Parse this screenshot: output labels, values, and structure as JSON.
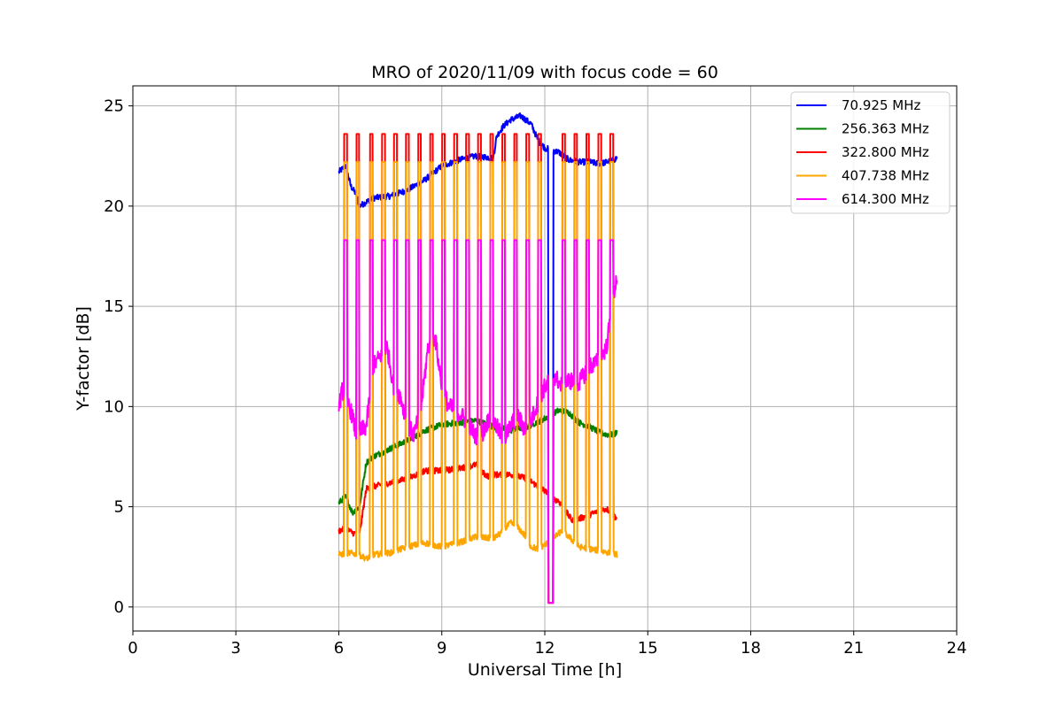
{
  "chart_data": {
    "type": "line",
    "title": "MRO of 2020/11/09 with focus code = 60",
    "xlabel": "Universal Time [h]",
    "ylabel": "Y-factor [dB]",
    "xlim": [
      0,
      24
    ],
    "ylim": [
      -1.2,
      26.0
    ],
    "xticks": [
      0,
      3,
      6,
      9,
      12,
      15,
      18,
      21,
      24
    ],
    "yticks": [
      0,
      5,
      10,
      15,
      20,
      25
    ],
    "grid": true,
    "legend_position": "top-right",
    "pulse_times": [
      6.2,
      6.55,
      6.95,
      7.3,
      7.65,
      8.0,
      8.35,
      8.7,
      9.05,
      9.4,
      9.75,
      10.1,
      10.45,
      10.8,
      11.15,
      11.5,
      11.85,
      12.55,
      12.9,
      13.25,
      13.6,
      13.95
    ],
    "pulse_levels": {
      "322.800 MHz": 23.6,
      "407.738 MHz": 22.2,
      "614.300 MHz": 18.3
    },
    "gap": {
      "x": [
        12.1,
        12.25
      ],
      "y": 0.2
    },
    "series": [
      {
        "name": " 70.925 MHz",
        "color": "#0000ff",
        "x": [
          6.0,
          6.2,
          6.35,
          6.5,
          6.6,
          6.8,
          7.0,
          7.5,
          8.0,
          8.5,
          9.0,
          9.5,
          10.0,
          10.5,
          10.6,
          10.8,
          11.0,
          11.3,
          11.6,
          11.8,
          12.0,
          12.2,
          12.4,
          12.7,
          13.0,
          13.3,
          13.6,
          13.8,
          14.0,
          14.1
        ],
        "y": [
          21.7,
          22.0,
          21.0,
          20.6,
          20.0,
          20.2,
          20.4,
          20.5,
          20.8,
          21.3,
          22.0,
          22.3,
          22.5,
          22.4,
          23.5,
          24.0,
          24.3,
          24.5,
          24.1,
          23.3,
          22.9,
          22.8,
          22.7,
          22.3,
          22.2,
          22.2,
          22.1,
          22.2,
          22.3,
          22.4
        ]
      },
      {
        "name": "256.363 MHz",
        "color": "#008000",
        "x": [
          6.0,
          6.2,
          6.4,
          6.6,
          6.8,
          7.0,
          7.5,
          8.0,
          8.5,
          9.0,
          9.5,
          10.0,
          10.5,
          11.0,
          11.5,
          12.0,
          12.2,
          12.4,
          12.7,
          13.0,
          13.3,
          13.6,
          13.8,
          14.0,
          14.1
        ],
        "y": [
          5.2,
          5.5,
          4.7,
          5.0,
          7.2,
          7.5,
          7.9,
          8.3,
          8.8,
          9.1,
          9.2,
          9.3,
          9.0,
          8.8,
          9.0,
          9.4,
          9.6,
          9.8,
          9.7,
          9.2,
          9.0,
          8.7,
          8.6,
          8.6,
          8.7
        ]
      },
      {
        "name": "322.800 MHz",
        "color": "#ff0000",
        "x": [
          6.0,
          6.2,
          6.4,
          6.6,
          6.8,
          7.0,
          7.5,
          8.0,
          8.5,
          9.0,
          9.5,
          10.0,
          10.3,
          10.5,
          11.0,
          11.5,
          11.8,
          12.0,
          12.2,
          12.4,
          12.6,
          12.8,
          13.0,
          13.3,
          13.6,
          13.8,
          14.0,
          14.1
        ],
        "y": [
          3.8,
          3.9,
          3.7,
          3.6,
          5.9,
          6.0,
          6.2,
          6.4,
          6.8,
          6.8,
          6.9,
          7.1,
          6.5,
          6.6,
          6.6,
          6.4,
          6.0,
          5.8,
          5.4,
          5.3,
          4.8,
          4.3,
          4.4,
          4.6,
          4.8,
          4.9,
          4.6,
          4.4
        ]
      },
      {
        "name": "407.738 MHz",
        "color": "#ffa500",
        "x": [
          6.0,
          6.3,
          6.6,
          6.8,
          7.0,
          7.5,
          8.0,
          8.5,
          9.0,
          9.5,
          10.0,
          10.5,
          10.8,
          11.0,
          11.2,
          11.4,
          11.6,
          11.8,
          12.0,
          12.3,
          12.5,
          12.7,
          13.0,
          13.3,
          13.6,
          13.9,
          14.1
        ],
        "y": [
          2.6,
          2.7,
          2.6,
          2.4,
          2.6,
          2.7,
          3.0,
          3.2,
          3.0,
          3.2,
          3.5,
          3.4,
          3.8,
          4.2,
          4.0,
          3.6,
          3.0,
          2.9,
          3.1,
          3.5,
          3.8,
          3.5,
          3.0,
          2.9,
          2.8,
          2.7,
          2.6
        ]
      },
      {
        "name": "614.300 MHz",
        "color": "#ff00ff",
        "x": [
          6.0,
          6.1,
          6.2,
          6.4,
          6.5,
          6.8,
          7.0,
          7.2,
          7.4,
          7.6,
          7.8,
          8.0,
          8.2,
          8.4,
          8.6,
          8.8,
          9.0,
          9.2,
          9.4,
          9.6,
          9.8,
          10.0,
          10.2,
          10.4,
          10.6,
          10.8,
          11.0,
          11.2,
          11.4,
          11.6,
          11.8,
          12.0,
          12.3,
          12.5,
          12.7,
          13.0,
          13.3,
          13.6,
          13.8,
          14.0,
          14.1
        ],
        "y": [
          10.0,
          10.8,
          10.5,
          9.5,
          8.6,
          9.0,
          12.0,
          12.5,
          13.0,
          11.0,
          10.5,
          9.0,
          8.6,
          10.0,
          13.0,
          13.5,
          11.0,
          10.0,
          9.8,
          9.5,
          9.0,
          8.5,
          8.7,
          9.5,
          9.0,
          8.3,
          9.0,
          9.6,
          8.9,
          9.3,
          10.2,
          11.0,
          11.5,
          11.0,
          11.3,
          11.2,
          12.0,
          12.3,
          13.0,
          15.5,
          16.5
        ]
      }
    ]
  }
}
